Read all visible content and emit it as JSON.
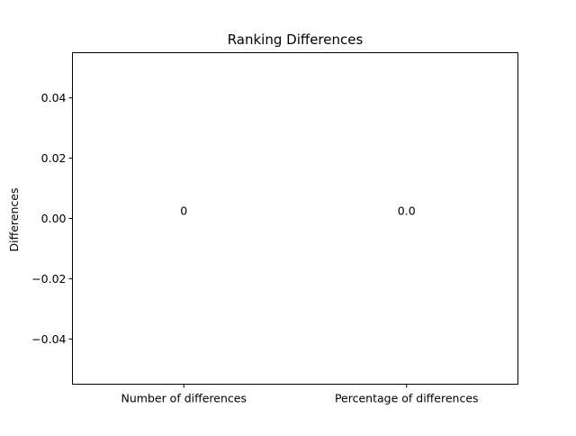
{
  "chart_data": {
    "type": "bar",
    "title": "Ranking Differences",
    "xlabel": "",
    "ylabel": "Differences",
    "categories": [
      "Number of differences",
      "Percentage of differences"
    ],
    "values": [
      0,
      0.0
    ],
    "data_labels": [
      "0",
      "0.0"
    ],
    "ylim": [
      -0.055,
      0.055
    ],
    "yticks": [
      -0.04,
      -0.02,
      0.0,
      0.02,
      0.04
    ],
    "ytick_labels": [
      "−0.04",
      "−0.02",
      "0.00",
      "0.02",
      "0.04"
    ],
    "grid": false,
    "legend": "none"
  }
}
